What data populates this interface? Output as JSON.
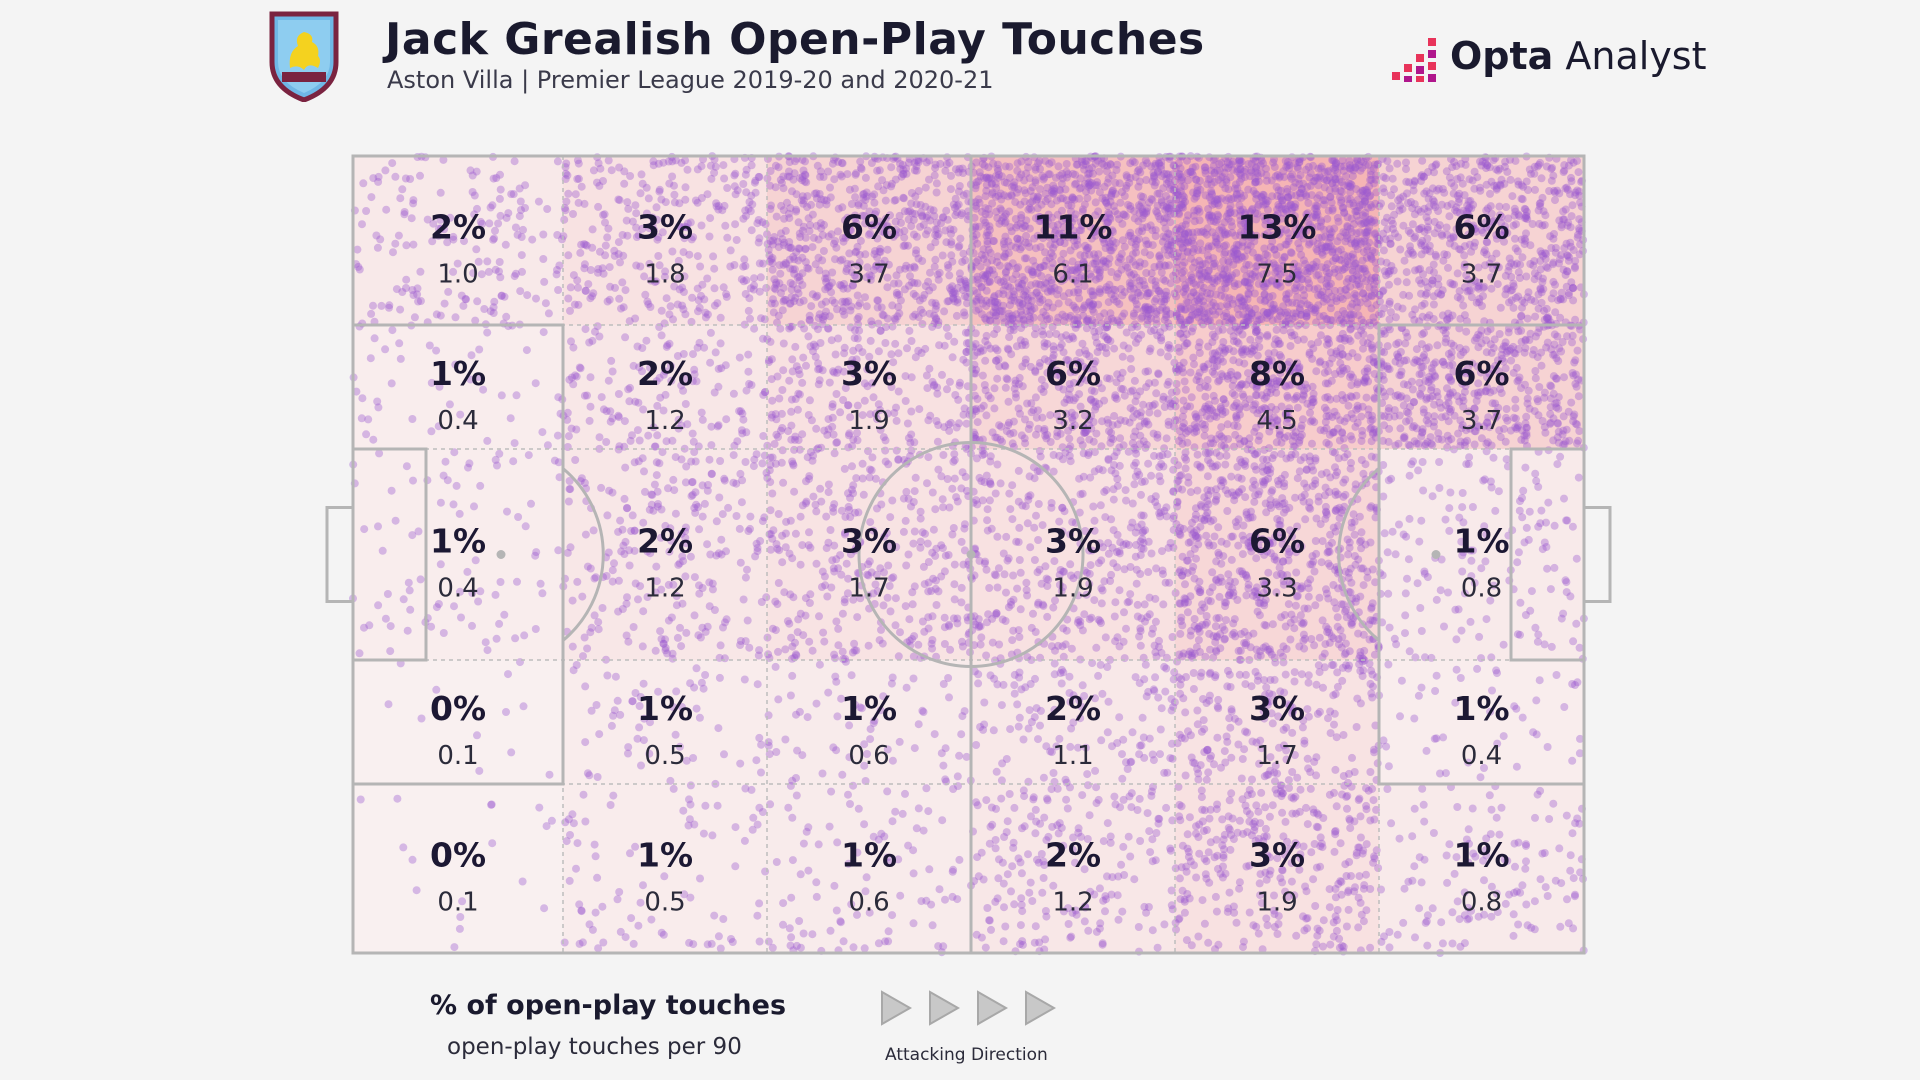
{
  "header": {
    "title": "Jack Grealish Open-Play Touches",
    "subtitle": "Aston Villa | Premier League 2019-20 and 2020-21",
    "crest_icon": "aston-villa-crest-icon",
    "brand_bold": "Opta",
    "brand_light": " Analyst",
    "brand_icon": "opta-analyst-logo-icon"
  },
  "legend": {
    "pct_label": "% of open-play touches",
    "val_label": "open-play touches per 90",
    "direction_label": "Attacking Direction",
    "arrow_icon": "play-arrow-icon"
  },
  "colors": {
    "background": "#f4f4f4",
    "heat": "#f08080",
    "dot": "#9b59d0",
    "pitch_line": "#b5b5b5"
  },
  "chart_data": {
    "type": "heatmap",
    "title": "Jack Grealish Open-Play Touches",
    "subtitle": "Aston Villa | Premier League 2019-20 and 2020-21",
    "columns": 6,
    "rows": 5,
    "cells": [
      [
        {
          "pct": "2%",
          "value": "1.0"
        },
        {
          "pct": "3%",
          "value": "1.8"
        },
        {
          "pct": "6%",
          "value": "3.7"
        },
        {
          "pct": "11%",
          "value": "6.1"
        },
        {
          "pct": "13%",
          "value": "7.5"
        },
        {
          "pct": "6%",
          "value": "3.7"
        }
      ],
      [
        {
          "pct": "1%",
          "value": "0.4"
        },
        {
          "pct": "2%",
          "value": "1.2"
        },
        {
          "pct": "3%",
          "value": "1.9"
        },
        {
          "pct": "6%",
          "value": "3.2"
        },
        {
          "pct": "8%",
          "value": "4.5"
        },
        {
          "pct": "6%",
          "value": "3.7"
        }
      ],
      [
        {
          "pct": "1%",
          "value": "0.4"
        },
        {
          "pct": "2%",
          "value": "1.2"
        },
        {
          "pct": "3%",
          "value": "1.7"
        },
        {
          "pct": "3%",
          "value": "1.9"
        },
        {
          "pct": "6%",
          "value": "3.3"
        },
        {
          "pct": "1%",
          "value": "0.8"
        }
      ],
      [
        {
          "pct": "0%",
          "value": "0.1"
        },
        {
          "pct": "1%",
          "value": "0.5"
        },
        {
          "pct": "1%",
          "value": "0.6"
        },
        {
          "pct": "2%",
          "value": "1.1"
        },
        {
          "pct": "3%",
          "value": "1.7"
        },
        {
          "pct": "1%",
          "value": "0.4"
        }
      ],
      [
        {
          "pct": "0%",
          "value": "0.1"
        },
        {
          "pct": "1%",
          "value": "0.5"
        },
        {
          "pct": "1%",
          "value": "0.6"
        },
        {
          "pct": "2%",
          "value": "1.2"
        },
        {
          "pct": "3%",
          "value": "1.9"
        },
        {
          "pct": "1%",
          "value": "0.8"
        }
      ]
    ]
  }
}
